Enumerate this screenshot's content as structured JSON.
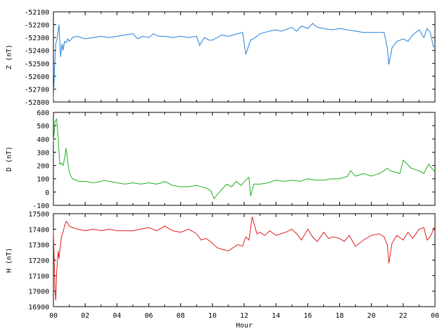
{
  "chart_data": [
    {
      "type": "line",
      "panel": "Z",
      "ylabel": "Z (nT)",
      "ylim": [
        -52800,
        -52100
      ],
      "yticks": [
        -52100,
        -52200,
        -52300,
        -52400,
        -52500,
        -52600,
        -52700,
        -52800
      ],
      "color": "#1f7fd8",
      "series": [
        {
          "x": [
            0.0,
            0.1,
            0.15,
            0.25,
            0.35,
            0.45,
            0.5,
            0.55,
            0.6,
            0.7,
            0.8,
            0.9,
            1.0,
            1.2,
            1.5,
            2.0,
            2.5,
            3.0,
            3.5,
            4.0,
            4.5,
            5.0,
            5.3,
            5.6,
            6.0,
            6.3,
            6.6,
            7.0,
            7.5,
            8.0,
            8.5,
            9.0,
            9.2,
            9.5,
            9.8,
            10.0,
            10.3,
            10.6,
            11.0,
            11.3,
            11.6,
            11.9,
            12.1,
            12.4,
            12.7,
            13.0,
            13.3,
            13.6,
            14.0,
            14.3,
            14.6,
            15.0,
            15.3,
            15.6,
            16.0,
            16.3,
            16.6,
            17.0,
            17.5,
            18.0,
            18.5,
            19.0,
            19.5,
            20.0,
            20.5,
            20.8,
            21.0,
            21.1,
            21.3,
            21.6,
            22.0,
            22.3,
            22.6,
            23.0,
            23.3,
            23.5,
            23.7,
            23.9,
            24.0
          ],
          "y": [
            -52780,
            -52450,
            -52350,
            -52300,
            -52200,
            -52450,
            -52380,
            -52350,
            -52400,
            -52330,
            -52340,
            -52310,
            -52330,
            -52300,
            -52290,
            -52310,
            -52300,
            -52290,
            -52300,
            -52290,
            -52280,
            -52270,
            -52310,
            -52290,
            -52300,
            -52270,
            -52290,
            -52290,
            -52300,
            -52290,
            -52300,
            -52290,
            -52360,
            -52300,
            -52320,
            -52320,
            -52300,
            -52280,
            -52290,
            -52280,
            -52270,
            -52260,
            -52430,
            -52320,
            -52300,
            -52270,
            -52260,
            -52250,
            -52240,
            -52250,
            -52240,
            -52220,
            -52250,
            -52210,
            -52230,
            -52190,
            -52220,
            -52230,
            -52240,
            -52230,
            -52240,
            -52250,
            -52260,
            -52260,
            -52260,
            -52260,
            -52380,
            -52510,
            -52380,
            -52330,
            -52310,
            -52330,
            -52280,
            -52240,
            -52300,
            -52230,
            -52260,
            -52370,
            -52370
          ]
        }
      ]
    },
    {
      "type": "line",
      "panel": "D",
      "ylabel": "D (nT)",
      "ylim": [
        -100,
        600
      ],
      "yticks": [
        600,
        500,
        400,
        300,
        200,
        100,
        0,
        -100
      ],
      "color": "#1caf1c",
      "series": [
        {
          "x": [
            0.0,
            0.1,
            0.2,
            0.3,
            0.4,
            0.5,
            0.6,
            0.7,
            0.8,
            0.9,
            1.0,
            1.1,
            1.2,
            1.4,
            1.6,
            2.0,
            2.5,
            3.0,
            3.2,
            3.5,
            4.0,
            4.5,
            5.0,
            5.5,
            6.0,
            6.5,
            6.8,
            7.0,
            7.5,
            8.0,
            8.5,
            9.0,
            9.3,
            9.6,
            9.9,
            10.1,
            10.3,
            10.6,
            10.9,
            11.2,
            11.5,
            11.8,
            12.1,
            12.3,
            12.4,
            12.6,
            13.0,
            13.5,
            14.0,
            14.5,
            15.0,
            15.5,
            16.0,
            16.5,
            17.0,
            17.5,
            18.0,
            18.5,
            18.7,
            19.0,
            19.5,
            20.0,
            20.5,
            20.8,
            21.0,
            21.2,
            21.5,
            21.8,
            22.0,
            22.5,
            23.0,
            23.3,
            23.6,
            24.0
          ],
          "y": [
            380,
            530,
            550,
            400,
            210,
            220,
            200,
            250,
            330,
            230,
            150,
            120,
            100,
            90,
            80,
            80,
            70,
            80,
            90,
            80,
            70,
            60,
            70,
            60,
            70,
            60,
            70,
            80,
            50,
            40,
            40,
            50,
            40,
            30,
            10,
            -50,
            -20,
            20,
            60,
            40,
            80,
            50,
            90,
            110,
            -30,
            60,
            60,
            70,
            90,
            80,
            90,
            80,
            100,
            90,
            90,
            100,
            100,
            120,
            160,
            120,
            140,
            120,
            140,
            160,
            180,
            160,
            150,
            140,
            240,
            180,
            160,
            140,
            210,
            150
          ]
        }
      ]
    },
    {
      "type": "line",
      "panel": "H",
      "ylabel": "H (nT)",
      "xlabel": "Hour",
      "ylim": [
        16900,
        17500
      ],
      "yticks": [
        17500,
        17400,
        17300,
        17200,
        17100,
        17000,
        16900
      ],
      "xlim": [
        0,
        24
      ],
      "xticks": [
        "00",
        "02",
        "04",
        "06",
        "08",
        "10",
        "12",
        "14",
        "16",
        "18",
        "20",
        "22",
        "00"
      ],
      "color": "#e31a1a",
      "series": [
        {
          "x": [
            0.0,
            0.05,
            0.1,
            0.15,
            0.2,
            0.3,
            0.35,
            0.45,
            0.5,
            0.6,
            0.7,
            0.8,
            0.9,
            1.0,
            1.2,
            1.5,
            2.0,
            2.5,
            3.0,
            3.5,
            4.0,
            4.5,
            5.0,
            5.5,
            6.0,
            6.5,
            7.0,
            7.5,
            8.0,
            8.5,
            9.0,
            9.3,
            9.6,
            10.0,
            10.3,
            10.6,
            11.0,
            11.3,
            11.6,
            11.9,
            12.1,
            12.3,
            12.5,
            12.8,
            13.0,
            13.3,
            13.6,
            14.0,
            14.3,
            14.6,
            15.0,
            15.3,
            15.6,
            16.0,
            16.3,
            16.6,
            17.0,
            17.3,
            17.6,
            18.0,
            18.3,
            18.6,
            19.0,
            19.5,
            20.0,
            20.5,
            20.8,
            21.0,
            21.1,
            21.3,
            21.6,
            22.0,
            22.3,
            22.6,
            23.0,
            23.3,
            23.5,
            23.7,
            24.0
          ],
          "y": [
            17390,
            17200,
            17000,
            16940,
            17120,
            17260,
            17210,
            17300,
            17350,
            17380,
            17420,
            17450,
            17440,
            17420,
            17410,
            17400,
            17390,
            17400,
            17390,
            17400,
            17390,
            17390,
            17390,
            17400,
            17410,
            17390,
            17420,
            17390,
            17380,
            17400,
            17370,
            17330,
            17340,
            17310,
            17280,
            17270,
            17260,
            17280,
            17300,
            17290,
            17350,
            17330,
            17480,
            17370,
            17380,
            17360,
            17390,
            17360,
            17370,
            17380,
            17400,
            17370,
            17330,
            17400,
            17350,
            17320,
            17380,
            17340,
            17350,
            17340,
            17320,
            17360,
            17290,
            17330,
            17360,
            17370,
            17350,
            17300,
            17180,
            17310,
            17360,
            17330,
            17380,
            17340,
            17400,
            17410,
            17330,
            17350,
            17420
          ]
        }
      ]
    }
  ]
}
